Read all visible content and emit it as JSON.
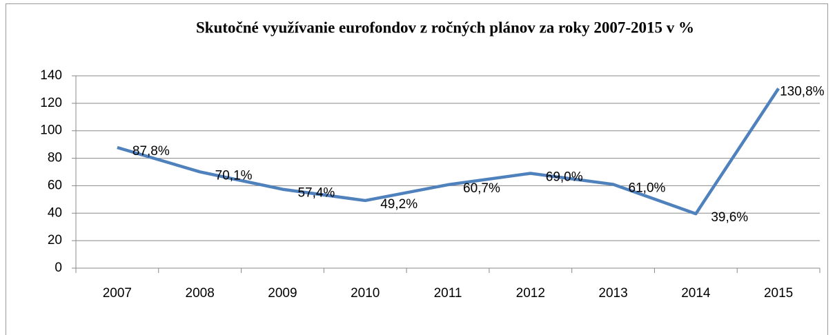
{
  "chart_data": {
    "type": "line",
    "title": "Skutočné využívanie eurofondov  z ročných plánov  za roky 2007-2015  v %",
    "categories": [
      "2007",
      "2008",
      "2009",
      "2010",
      "2011",
      "2012",
      "2013",
      "2014",
      "2015"
    ],
    "series": [
      {
        "name": "Skutočné využívanie",
        "color": "#4f81bd",
        "values": [
          87.8,
          70.1,
          57.4,
          49.2,
          60.7,
          69.0,
          61.0,
          39.6,
          130.8
        ],
        "value_labels": [
          "87,8%",
          "70,1%",
          "57,4%",
          "49,2%",
          "60,7%",
          "69,0%",
          "61,0%",
          "39,6%",
          "130,8%"
        ]
      }
    ],
    "ylim": [
      0,
      140
    ],
    "yticks": [
      0,
      20,
      40,
      60,
      80,
      100,
      120,
      140
    ],
    "grid": true
  }
}
